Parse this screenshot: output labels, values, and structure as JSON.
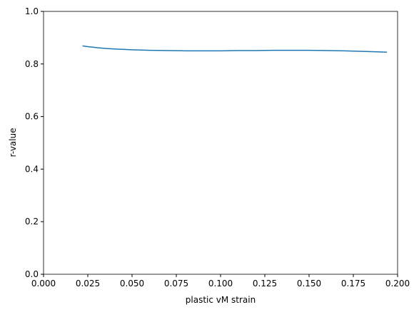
{
  "chart_data": {
    "type": "line",
    "x_label": "plastic vM strain",
    "y_label": "r-value",
    "x": [
      0.022,
      0.025,
      0.03,
      0.035,
      0.04,
      0.05,
      0.06,
      0.07,
      0.08,
      0.09,
      0.1,
      0.11,
      0.12,
      0.13,
      0.14,
      0.15,
      0.16,
      0.17,
      0.18,
      0.19,
      0.194
    ],
    "series": [
      {
        "color": "#1f77b4",
        "values": [
          0.869,
          0.866,
          0.862,
          0.859,
          0.857,
          0.854,
          0.852,
          0.851,
          0.85,
          0.85,
          0.85,
          0.851,
          0.851,
          0.852,
          0.852,
          0.852,
          0.851,
          0.85,
          0.848,
          0.846,
          0.845
        ]
      }
    ],
    "xlim": [
      0,
      0.2
    ],
    "xticks": [
      {
        "value": 0,
        "label": "0.000"
      },
      {
        "value": 0.025,
        "label": "0.025"
      },
      {
        "value": 0.05,
        "label": "0.050"
      },
      {
        "value": 0.075,
        "label": "0.075"
      },
      {
        "value": 0.1,
        "label": "0.100"
      },
      {
        "value": 0.125,
        "label": "0.125"
      },
      {
        "value": 0.15,
        "label": "0.150"
      },
      {
        "value": 0.175,
        "label": "0.175"
      },
      {
        "value": 0.2,
        "label": "0.200"
      }
    ],
    "ylim": [
      0,
      1
    ],
    "yticks": [
      {
        "value": 0,
        "label": "0.0"
      },
      0.2,
      0.4,
      0.6,
      0.8,
      {
        "value": 1,
        "label": "1.0"
      }
    ]
  }
}
